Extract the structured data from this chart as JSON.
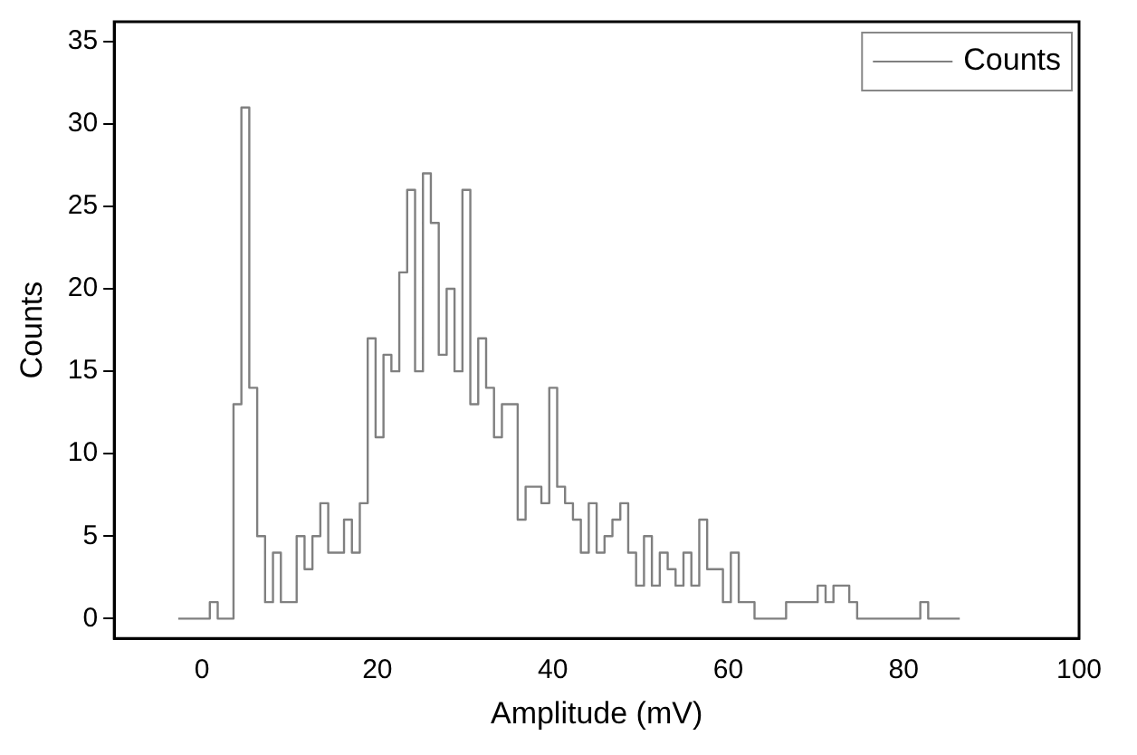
{
  "chart_data": {
    "type": "histogram",
    "xlabel": "Amplitude (mV)",
    "ylabel": "Counts",
    "bins": [
      -2.7,
      -1.8,
      -0.9,
      0,
      0.9,
      1.8,
      2.7,
      3.6,
      4.5,
      5.4,
      6.3,
      7.2,
      8.1,
      9,
      9.9,
      10.8,
      11.7,
      12.6,
      13.5,
      14.4,
      15.3,
      16.2,
      17.1,
      18,
      18.9,
      19.8,
      20.7,
      21.6,
      22.5,
      23.4,
      24.3,
      25.2,
      26.1,
      27,
      27.9,
      28.8,
      29.7,
      30.6,
      31.5,
      32.4,
      33.3,
      34.2,
      35.1,
      36,
      36.9,
      37.8,
      38.7,
      39.6,
      40.5,
      41.4,
      42.3,
      43.2,
      44.1,
      45,
      45.9,
      46.8,
      47.7,
      48.6,
      49.5,
      50.4,
      51.3,
      52.2,
      53.1,
      54,
      54.9,
      55.8,
      56.7,
      57.6,
      58.5,
      59.4,
      60.3,
      61.2,
      62.1,
      63,
      63.9,
      64.8,
      65.7,
      66.6,
      67.5,
      68.4,
      69.3,
      70.2,
      71.1,
      72,
      72.9,
      73.8,
      74.7,
      75.6,
      76.5,
      77.4,
      78.3,
      79.2,
      80.1,
      81,
      81.9,
      82.8,
      83.7,
      84.6,
      85.5,
      86.4
    ],
    "series": [
      {
        "name": "Counts",
        "color": "#808080",
        "values": [
          0,
          0,
          0,
          0,
          1,
          0,
          0,
          13,
          31,
          14,
          5,
          1,
          4,
          1,
          1,
          5,
          3,
          5,
          7,
          4,
          4,
          6,
          4,
          7,
          17,
          11,
          16,
          15,
          21,
          26,
          15,
          27,
          24,
          16,
          20,
          15,
          26,
          13,
          17,
          14,
          11,
          13,
          13,
          6,
          8,
          8,
          7,
          14,
          8,
          7,
          6,
          4,
          7,
          4,
          5,
          6,
          7,
          4,
          2,
          5,
          2,
          4,
          3,
          2,
          4,
          2,
          6,
          3,
          3,
          1,
          4,
          1,
          1,
          0,
          0,
          0,
          0,
          1,
          1,
          1,
          1,
          2,
          1,
          2,
          2,
          1,
          0,
          0,
          0,
          0,
          0,
          0,
          0,
          0,
          1,
          0,
          0,
          0,
          0
        ]
      }
    ],
    "xlim": [
      -10,
      100
    ],
    "xticks": [
      0,
      20,
      40,
      60,
      80,
      100
    ],
    "ylim": [
      -1.2,
      36.2
    ],
    "yticks": [
      0,
      5,
      10,
      15,
      20,
      25,
      30,
      35
    ],
    "grid": false,
    "legend": "top right"
  }
}
